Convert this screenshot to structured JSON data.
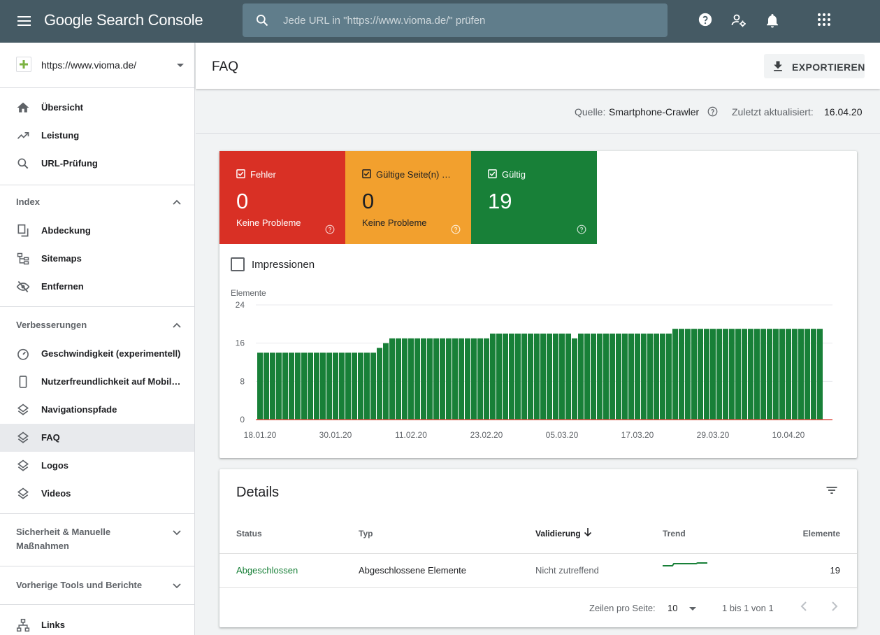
{
  "topbar": {
    "brand": "Google Search Console",
    "search_placeholder": "Jede URL in \"https://www.vioma.de/\" prüfen"
  },
  "sidebar": {
    "property": "https://www.vioma.de/",
    "nav_top": [
      "Übersicht",
      "Leistung",
      "URL-Prüfung"
    ],
    "section_index": "Index",
    "nav_index": [
      "Abdeckung",
      "Sitemaps",
      "Entfernen"
    ],
    "section_enh": "Verbesserungen",
    "nav_enh": [
      "Geschwindigkeit (experimentell)",
      "Nutzerfreundlichkeit auf Mobil…",
      "Navigationspfade",
      "FAQ",
      "Logos",
      "Videos"
    ],
    "section_security_1": "Sicherheit & Manuelle",
    "section_security_2": "Maßnahmen",
    "section_legacy": "Vorherige Tools und Berichte",
    "nav_links": "Links"
  },
  "header": {
    "title": "FAQ",
    "export_label": "EXPORTIEREN"
  },
  "source": {
    "label": "Quelle:",
    "value": "Smartphone-Crawler",
    "updated_label": "Zuletzt aktualisiert:",
    "updated_value": "16.04.20"
  },
  "tiles": [
    {
      "label": "Fehler",
      "value": "0",
      "sub": "Keine Probleme",
      "color": "#d93025"
    },
    {
      "label": "Gültige Seite(n) …",
      "value": "0",
      "sub": "Keine Probleme",
      "color": "#f2a02e"
    },
    {
      "label": "Gültig",
      "value": "19",
      "sub": "",
      "color": "#188038"
    }
  ],
  "impressions_label": "Impressionen",
  "chart_data": {
    "type": "bar",
    "ylabel": "Elemente",
    "ylim": [
      0,
      24
    ],
    "yticks": [
      "0",
      "8",
      "16",
      "24"
    ],
    "xticks": [
      "18.01.20",
      "30.01.20",
      "11.02.20",
      "23.02.20",
      "05.03.20",
      "17.03.20",
      "29.03.20",
      "10.04.20"
    ],
    "series": [
      {
        "color": "#188038",
        "values": [
          14,
          14,
          14,
          14,
          14,
          14,
          14,
          14,
          14,
          14,
          14,
          14,
          14,
          14,
          14,
          14,
          14,
          14,
          14,
          15,
          16,
          17,
          17,
          17,
          17,
          17,
          17,
          17,
          17,
          17,
          17,
          17,
          17,
          17,
          17,
          17,
          17,
          18,
          18,
          18,
          18,
          18,
          18,
          18,
          18,
          18,
          18,
          18,
          18,
          18,
          17,
          18,
          18,
          18,
          18,
          18,
          18,
          18,
          18,
          18,
          18,
          18,
          18,
          18,
          18,
          18,
          19,
          19,
          19,
          19,
          19,
          19,
          19,
          19,
          19,
          19,
          19,
          19,
          19,
          19,
          19,
          19,
          19,
          19,
          19,
          19,
          19,
          19,
          19,
          19
        ]
      }
    ]
  },
  "details": {
    "title": "Details",
    "columns": [
      "Status",
      "Typ",
      "Validierung",
      "Trend",
      "Elemente"
    ],
    "row": {
      "status": "Abgeschlossen",
      "type": "Abgeschlossene Elemente",
      "validation": "Nicht zutreffend",
      "elements": "19"
    },
    "pagination": {
      "rows_label": "Zeilen pro Seite:",
      "rows_value": "10",
      "range": "1 bis 1 von 1"
    }
  }
}
